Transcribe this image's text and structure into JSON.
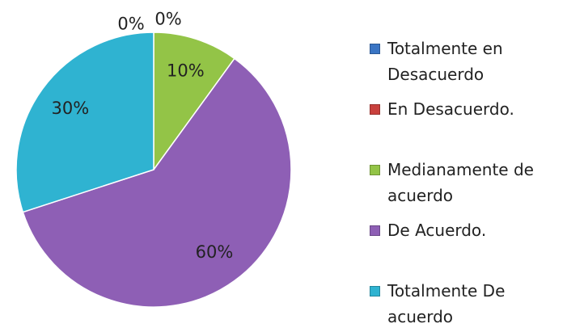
{
  "chart_data": {
    "type": "pie",
    "categories": [
      "Totalmente en Desacuerdo",
      "En Desacuerdo.",
      "Medianamente de acuerdo",
      "De Acuerdo.",
      "Totalmente De acuerdo"
    ],
    "values": [
      0,
      0,
      10,
      60,
      30
    ],
    "value_labels": [
      "0%",
      "0%",
      "10%",
      "60%",
      "30%"
    ],
    "colors": [
      "#3a75c4",
      "#c9413d",
      "#93c447",
      "#8e5fb5",
      "#2fb3d1"
    ],
    "legend": "right"
  }
}
